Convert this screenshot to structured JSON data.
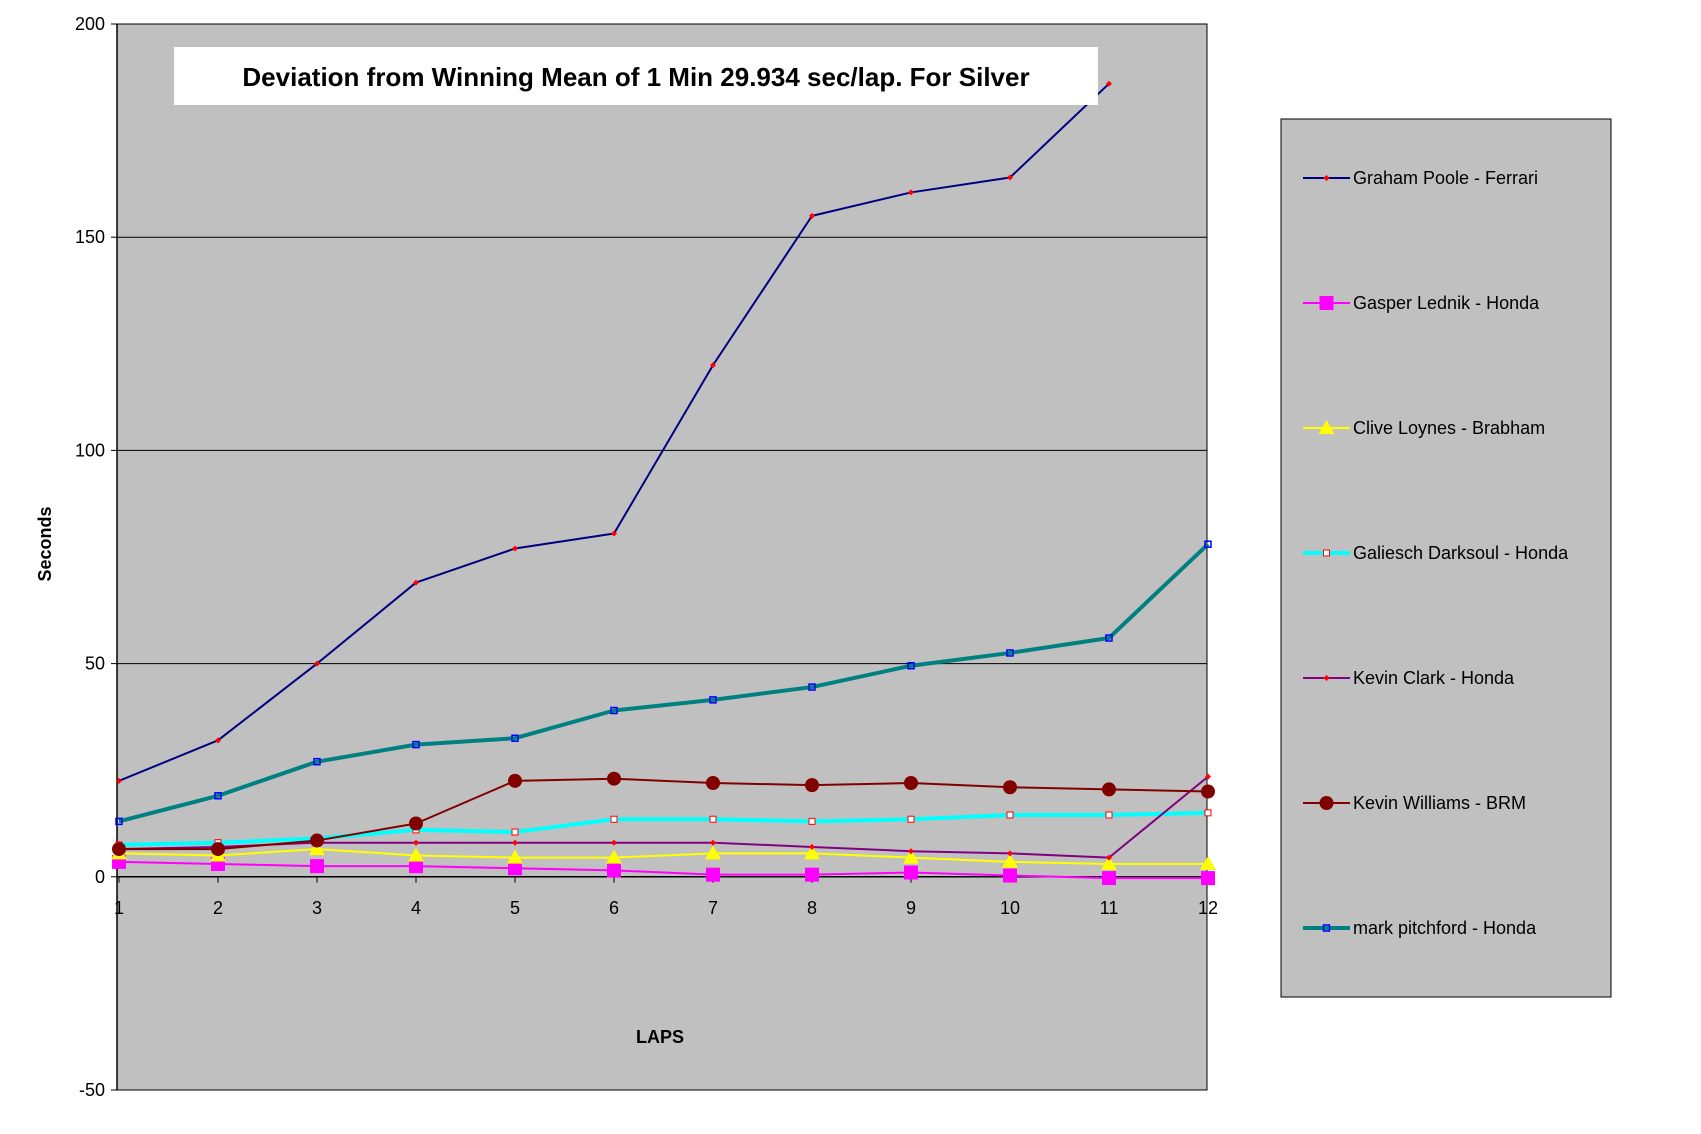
{
  "chart_data": {
    "type": "line",
    "title": "Deviation from Winning Mean of 1 Min 29.934 sec/lap. For Silver",
    "xlabel": "LAPS",
    "ylabel": "Seconds",
    "categories": [
      1,
      2,
      3,
      4,
      5,
      6,
      7,
      8,
      9,
      10,
      11,
      12
    ],
    "x_tick_labels": [
      "1",
      "2",
      "3",
      "4",
      "5",
      "6",
      "7",
      "8",
      "9",
      "10",
      "11",
      "12"
    ],
    "ylim": [
      -50,
      200
    ],
    "y_ticks": [
      -50,
      0,
      50,
      100,
      150,
      200
    ],
    "y_tick_labels": [
      "-50",
      "0",
      "50",
      "100",
      "150",
      "200"
    ],
    "grid": true,
    "legend_position": "right",
    "plot_background": "#c0c0c0",
    "series": [
      {
        "name": "Graham Poole - Ferrari",
        "color": "#000080",
        "marker": "small-diamond",
        "marker_color": "#ff0000",
        "values": [
          22.5,
          32,
          50,
          69,
          77,
          80.5,
          120,
          155,
          160.5,
          164,
          186,
          null
        ]
      },
      {
        "name": "Gasper Lednik - Honda",
        "color": "#ff00ff",
        "marker": "square",
        "marker_color": "#ff00ff",
        "values": [
          3.5,
          3,
          2.5,
          2.5,
          2,
          1.5,
          0.5,
          0.5,
          1,
          0.3,
          -0.3,
          -0.3
        ]
      },
      {
        "name": "Clive Loynes - Brabham",
        "color": "#ffff00",
        "marker": "triangle",
        "marker_color": "#ffff00",
        "values": [
          5.5,
          5,
          6.5,
          5,
          4.5,
          4.5,
          5.5,
          5.5,
          4.5,
          3.5,
          3,
          3
        ]
      },
      {
        "name": "Galiesch Darksoul - Honda",
        "color": "#00ffff",
        "marker": "hollow-square",
        "marker_color": "#ff0000",
        "values": [
          7.5,
          8,
          9,
          11,
          10.5,
          13.5,
          13.5,
          13,
          13.5,
          14.5,
          14.5,
          15
        ]
      },
      {
        "name": "Kevin Clark - Honda",
        "color": "#800080",
        "marker": "small-diamond",
        "marker_color": "#ff0000",
        "values": [
          6.5,
          7,
          8,
          8,
          8,
          8,
          8,
          7,
          6,
          5.5,
          4.5,
          23.5
        ]
      },
      {
        "name": "Kevin Williams - BRM",
        "color": "#800000",
        "marker": "circle",
        "marker_color": "#800000",
        "values": [
          6.5,
          6.5,
          8.5,
          12.5,
          22.5,
          23,
          22,
          21.5,
          22,
          21,
          20.5,
          20
        ]
      },
      {
        "name": "mark pitchford - Honda",
        "color": "#008080",
        "marker": "small-square",
        "marker_color": "#0000ff",
        "values": [
          13,
          19,
          27,
          31,
          32.5,
          39,
          41.5,
          44.5,
          49.5,
          52.5,
          56,
          78
        ]
      }
    ]
  }
}
